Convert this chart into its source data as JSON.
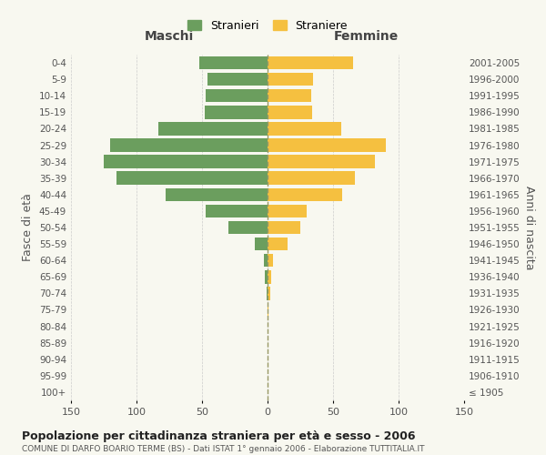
{
  "age_groups": [
    "100+",
    "95-99",
    "90-94",
    "85-89",
    "80-84",
    "75-79",
    "70-74",
    "65-69",
    "60-64",
    "55-59",
    "50-54",
    "45-49",
    "40-44",
    "35-39",
    "30-34",
    "25-29",
    "20-24",
    "15-19",
    "10-14",
    "5-9",
    "0-4"
  ],
  "birth_years": [
    "≤ 1905",
    "1906-1910",
    "1911-1915",
    "1916-1920",
    "1921-1925",
    "1926-1930",
    "1931-1935",
    "1936-1940",
    "1941-1945",
    "1946-1950",
    "1951-1955",
    "1956-1960",
    "1961-1965",
    "1966-1970",
    "1971-1975",
    "1976-1980",
    "1981-1985",
    "1986-1990",
    "1991-1995",
    "1996-2000",
    "2001-2005"
  ],
  "males": [
    0,
    0,
    0,
    0,
    0,
    0,
    1,
    2,
    3,
    10,
    30,
    47,
    78,
    115,
    125,
    120,
    83,
    48,
    47,
    46,
    52
  ],
  "females": [
    0,
    0,
    0,
    0,
    0,
    1,
    2,
    3,
    4,
    15,
    25,
    30,
    57,
    67,
    82,
    90,
    56,
    34,
    33,
    35,
    65
  ],
  "male_color": "#6b9e5e",
  "female_color": "#f5c040",
  "title": "Popolazione per cittadinanza straniera per età e sesso - 2006",
  "subtitle": "COMUNE DI DARFO BOARIO TERME (BS) - Dati ISTAT 1° gennaio 2006 - Elaborazione TUTTITALIA.IT",
  "xlabel_left": "Maschi",
  "xlabel_right": "Femmine",
  "ylabel_left": "Fasce di età",
  "ylabel_right": "Anni di nascita",
  "legend_male": "Stranieri",
  "legend_female": "Straniere",
  "xlim": 150,
  "background_color": "#f8f8f0",
  "grid_color": "#cccccc",
  "bar_height": 0.8
}
